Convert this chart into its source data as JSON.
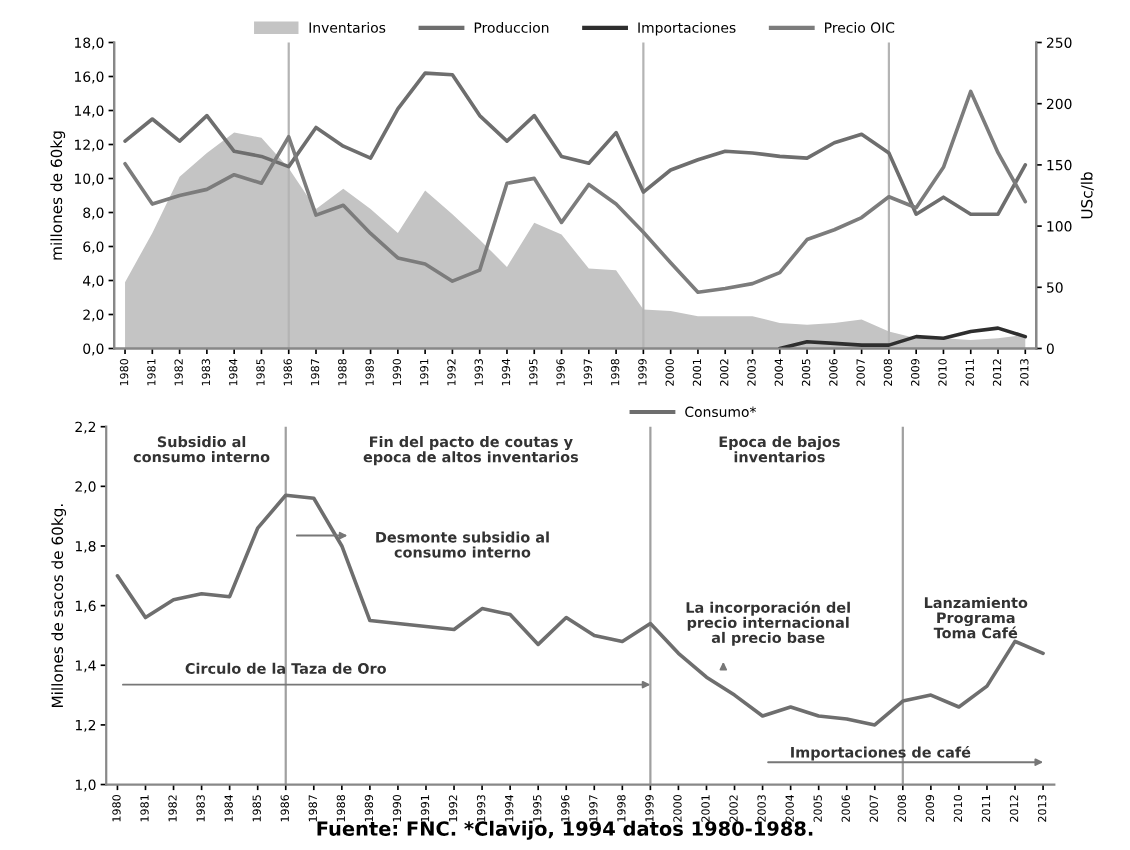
{
  "chart_data": [
    {
      "type": "line",
      "x": [
        1980,
        1981,
        1982,
        1983,
        1984,
        1985,
        1986,
        1987,
        1988,
        1989,
        1990,
        1991,
        1992,
        1993,
        1994,
        1995,
        1996,
        1997,
        1998,
        1999,
        2000,
        2001,
        2002,
        2003,
        2004,
        2005,
        2006,
        2007,
        2008,
        2009,
        2010,
        2011,
        2012,
        2013
      ],
      "ylabel": "millones de 60kg",
      "y2label": "USc/lb",
      "xlim": [
        1979.6,
        2013.4
      ],
      "xticks": [
        1980,
        1981,
        1982,
        1983,
        1984,
        1985,
        1986,
        1987,
        1988,
        1989,
        1990,
        1991,
        1992,
        1993,
        1994,
        1995,
        1996,
        1997,
        1998,
        1999,
        2000,
        2001,
        2002,
        2003,
        2004,
        2005,
        2006,
        2007,
        2008,
        2009,
        2010,
        2011,
        2012,
        2013
      ],
      "ylim": [
        0,
        18
      ],
      "yticks": [
        {
          "value": 0,
          "label": "0,0"
        },
        {
          "value": 2,
          "label": "2,0"
        },
        {
          "value": 4,
          "label": "4,0"
        },
        {
          "value": 6,
          "label": "6,0"
        },
        {
          "value": 8,
          "label": "8,0"
        },
        {
          "value": 10,
          "label": "10,0"
        },
        {
          "value": 12,
          "label": "12,0"
        },
        {
          "value": 14,
          "label": "14,0"
        },
        {
          "value": 16,
          "label": "16,0"
        },
        {
          "value": 18,
          "label": "18,0"
        }
      ],
      "y2lim": [
        0,
        250
      ],
      "y2ticks": [
        0,
        50,
        100,
        150,
        200,
        250
      ],
      "legend": "top",
      "grid": false,
      "ref_lines": [
        {
          "axis": "x",
          "value": 1986,
          "color": "#b4b4b4"
        },
        {
          "axis": "x",
          "value": 1999,
          "color": "#b4b4b4"
        },
        {
          "axis": "x",
          "value": 2008,
          "color": "#b4b4b4"
        }
      ],
      "series": [
        {
          "name": "Inventarios",
          "type": "area",
          "color": "#c4c4c4",
          "values": [
            3.9,
            6.8,
            10.1,
            11.5,
            12.7,
            12.4,
            10.6,
            8.2,
            9.4,
            8.2,
            6.8,
            9.3,
            7.9,
            6.4,
            4.8,
            7.4,
            6.7,
            4.7,
            4.6,
            2.3,
            2.2,
            1.9,
            1.9,
            1.9,
            1.5,
            1.4,
            1.5,
            1.7,
            1.0,
            0.6,
            0.6,
            0.5,
            0.6,
            0.8
          ]
        },
        {
          "name": "Produccion",
          "color": "#6e6e6e",
          "values": [
            12.2,
            13.5,
            12.2,
            13.7,
            11.6,
            11.3,
            10.7,
            13.0,
            11.9,
            11.2,
            14.1,
            16.2,
            16.1,
            13.7,
            12.2,
            13.7,
            11.3,
            10.9,
            12.7,
            9.2,
            10.5,
            11.1,
            11.6,
            11.5,
            11.3,
            11.2,
            12.1,
            12.6,
            11.5,
            7.9,
            8.9,
            7.9,
            7.9,
            10.8
          ]
        },
        {
          "name": "Importaciones",
          "color": "#2e2e2e",
          "values": [
            null,
            null,
            null,
            null,
            null,
            null,
            null,
            null,
            null,
            null,
            null,
            null,
            null,
            null,
            null,
            null,
            null,
            null,
            null,
            null,
            null,
            null,
            null,
            null,
            0,
            0.4,
            0.3,
            0.2,
            0.2,
            0.7,
            0.6,
            1.0,
            1.2,
            0.7
          ]
        },
        {
          "name": "Precio OIC",
          "axis": "y2",
          "color": "#7c7c7c",
          "values": [
            151,
            118,
            125,
            130,
            142,
            135,
            173,
            109,
            117,
            94,
            74,
            69,
            55,
            64,
            135,
            139,
            103,
            134,
            118,
            95,
            70,
            46,
            49,
            53,
            62,
            89,
            97,
            107,
            124,
            115,
            148,
            210,
            160,
            120
          ]
        }
      ]
    },
    {
      "type": "line",
      "x": [
        1980,
        1981,
        1982,
        1983,
        1984,
        1985,
        1986,
        1987,
        1988,
        1989,
        1990,
        1991,
        1992,
        1993,
        1994,
        1995,
        1996,
        1997,
        1998,
        1999,
        2000,
        2001,
        2002,
        2003,
        2004,
        2005,
        2006,
        2007,
        2008,
        2009,
        2010,
        2011,
        2012,
        2013
      ],
      "ylabel": "Millones de sacos de 60kg.",
      "xlim": [
        1979.6,
        2013.4
      ],
      "xticks": [
        1980,
        1981,
        1982,
        1983,
        1984,
        1985,
        1986,
        1987,
        1988,
        1989,
        1990,
        1991,
        1992,
        1993,
        1994,
        1995,
        1996,
        1997,
        1998,
        1999,
        2000,
        2001,
        2002,
        2003,
        2004,
        2005,
        2006,
        2007,
        2008,
        2009,
        2010,
        2011,
        2012,
        2013
      ],
      "ylim": [
        1.0,
        2.2
      ],
      "yticks": [
        {
          "value": 1.0,
          "label": "1,0"
        },
        {
          "value": 1.2,
          "label": "1,2"
        },
        {
          "value": 1.4,
          "label": "1,4"
        },
        {
          "value": 1.6,
          "label": "1,6"
        },
        {
          "value": 1.8,
          "label": "1,8"
        },
        {
          "value": 2.0,
          "label": "2,0"
        },
        {
          "value": 2.2,
          "label": "2,2"
        }
      ],
      "legend": "top",
      "grid": false,
      "ref_lines": [
        {
          "axis": "x",
          "value": 1986,
          "color": "#a0a0a0"
        },
        {
          "axis": "x",
          "value": 1999,
          "color": "#a0a0a0"
        },
        {
          "axis": "x",
          "value": 2008,
          "color": "#a0a0a0"
        }
      ],
      "series": [
        {
          "name": "Consumo*",
          "color": "#6e6e6e",
          "values": [
            1.7,
            1.56,
            1.62,
            1.64,
            1.63,
            1.86,
            1.97,
            1.96,
            1.8,
            1.55,
            1.54,
            1.53,
            1.52,
            1.59,
            1.57,
            1.47,
            1.56,
            1.5,
            1.48,
            1.54,
            1.44,
            1.36,
            1.3,
            1.23,
            1.26,
            1.23,
            1.22,
            1.2,
            1.28,
            1.3,
            1.26,
            1.33,
            1.48,
            1.44
          ]
        }
      ],
      "annotations": [
        "Subsidio al\nconsumo interno",
        "Fin del pacto de coutas y\nepoca de altos inventarios",
        "Epoca de bajos\ninventarios",
        "Desmonte subsidio al\nconsumo interno",
        "Circulo de la Taza de Oro",
        "La incorporación del\nprecio internacional\nal precio base",
        "Lanzamiento\nPrograma\nToma Café",
        "Importaciones de café",
        "Fuente: FNC. *Clavijo, 1994 datos 1980-1988."
      ]
    }
  ]
}
